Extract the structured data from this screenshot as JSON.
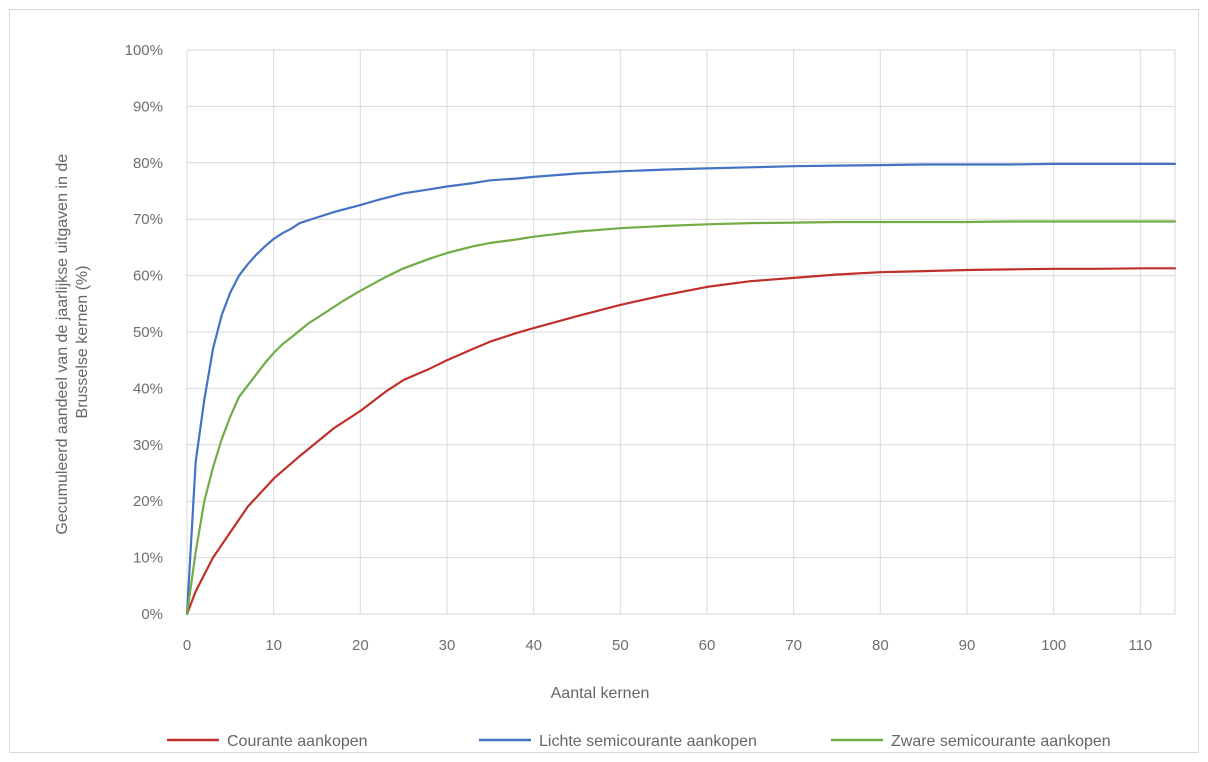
{
  "chart_data": {
    "type": "line",
    "xlabel": "Aantal kernen",
    "ylabel_lines": [
      "Gecumuleerd aandeel van de jaarlijkse uitgaven in de",
      "Brusselse kernen (%)"
    ],
    "xlim": [
      0,
      114
    ],
    "ylim": [
      0,
      100
    ],
    "x_ticks": [
      0,
      10,
      20,
      30,
      40,
      50,
      60,
      70,
      80,
      90,
      100,
      110
    ],
    "y_ticks": [
      0,
      10,
      20,
      30,
      40,
      50,
      60,
      70,
      80,
      90,
      100
    ],
    "y_tick_labels": [
      "0%",
      "10%",
      "20%",
      "30%",
      "40%",
      "50%",
      "60%",
      "70%",
      "80%",
      "90%",
      "100%"
    ],
    "grid": true,
    "legend_position": "bottom",
    "series": [
      {
        "name": "Courante aankopen",
        "color": "#c0302b",
        "x": [
          0,
          1,
          2,
          3,
          5,
          7,
          10,
          13,
          15,
          17,
          20,
          23,
          25,
          28,
          30,
          33,
          35,
          38,
          40,
          45,
          50,
          55,
          60,
          65,
          70,
          75,
          80,
          85,
          90,
          95,
          100,
          105,
          110,
          114
        ],
        "y": [
          0,
          4,
          7,
          10,
          14.5,
          19,
          24,
          28,
          30.5,
          33,
          36,
          39.5,
          41.5,
          43.5,
          45,
          47,
          48.3,
          49.8,
          50.7,
          52.8,
          54.8,
          56.5,
          58,
          59,
          59.6,
          60.2,
          60.6,
          60.8,
          61,
          61.1,
          61.2,
          61.2,
          61.3,
          61.3
        ]
      },
      {
        "name": "Lichte semicourante aankopen",
        "color": "#4472c4",
        "x": [
          0,
          1,
          2,
          3,
          4,
          5,
          6,
          7,
          8,
          9,
          10,
          11,
          12,
          13,
          15,
          17,
          20,
          22,
          25,
          28,
          30,
          33,
          35,
          38,
          40,
          45,
          50,
          55,
          60,
          65,
          70,
          75,
          80,
          85,
          90,
          95,
          100,
          105,
          110,
          114
        ],
        "y": [
          0,
          27,
          38,
          47,
          53,
          57,
          60,
          62,
          63.7,
          65.2,
          66.5,
          67.5,
          68.3,
          69.3,
          70.3,
          71.3,
          72.5,
          73.4,
          74.6,
          75.3,
          75.8,
          76.4,
          76.9,
          77.2,
          77.5,
          78.1,
          78.5,
          78.8,
          79,
          79.2,
          79.4,
          79.5,
          79.6,
          79.7,
          79.7,
          79.7,
          79.8,
          79.8,
          79.8,
          79.8
        ]
      },
      {
        "name": "Zware semicourante aankopen",
        "color": "#70ad47",
        "x": [
          0,
          1,
          2,
          3,
          4,
          5,
          6,
          7,
          8,
          9,
          10,
          11,
          12,
          14,
          16,
          18,
          20,
          23,
          25,
          28,
          30,
          33,
          35,
          38,
          40,
          45,
          50,
          55,
          60,
          65,
          70,
          75,
          80,
          85,
          90,
          95,
          100,
          105,
          110,
          114
        ],
        "y": [
          0,
          11,
          20,
          26,
          31,
          35,
          38.5,
          40.5,
          42.5,
          44.5,
          46.3,
          47.8,
          49,
          51.5,
          53.5,
          55.5,
          57.3,
          59.8,
          61.3,
          63,
          64,
          65.2,
          65.8,
          66.4,
          66.9,
          67.8,
          68.4,
          68.8,
          69.1,
          69.3,
          69.4,
          69.5,
          69.5,
          69.5,
          69.5,
          69.6,
          69.6,
          69.6,
          69.6,
          69.6
        ]
      }
    ]
  }
}
